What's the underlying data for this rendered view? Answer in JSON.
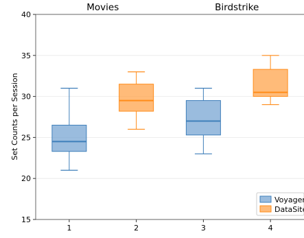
{
  "chart_data": {
    "type": "box",
    "ylabel": "Set Counts per Session",
    "xlabel": "",
    "ylim": [
      15,
      40
    ],
    "xlim": [
      0.5,
      4.5
    ],
    "yticks": [
      15,
      20,
      25,
      30,
      35,
      40
    ],
    "xticks": [
      1,
      2,
      3,
      4
    ],
    "grid": "horizontal, faint",
    "legend_position": "lower-right",
    "group_titles": [
      {
        "label": "Movies",
        "x_center": 1.5
      },
      {
        "label": "Birdstrike",
        "x_center": 3.5
      }
    ],
    "series": [
      {
        "name": "Voyager",
        "color": "#6f9fd0"
      },
      {
        "name": "DataSite",
        "color": "#ff9e40"
      }
    ],
    "boxes": [
      {
        "x": 1,
        "series": "Voyager",
        "whisker_low": 21,
        "q1": 23.3,
        "median": 24.5,
        "q3": 26.5,
        "whisker_high": 31
      },
      {
        "x": 2,
        "series": "DataSite",
        "whisker_low": 26,
        "q1": 28.2,
        "median": 29.5,
        "q3": 31.5,
        "whisker_high": 33
      },
      {
        "x": 3,
        "series": "Voyager",
        "whisker_low": 23,
        "q1": 25.3,
        "median": 27,
        "q3": 29.5,
        "whisker_high": 31
      },
      {
        "x": 4,
        "series": "DataSite",
        "whisker_low": 29,
        "q1": 30,
        "median": 30.5,
        "q3": 33.3,
        "whisker_high": 35
      }
    ]
  }
}
